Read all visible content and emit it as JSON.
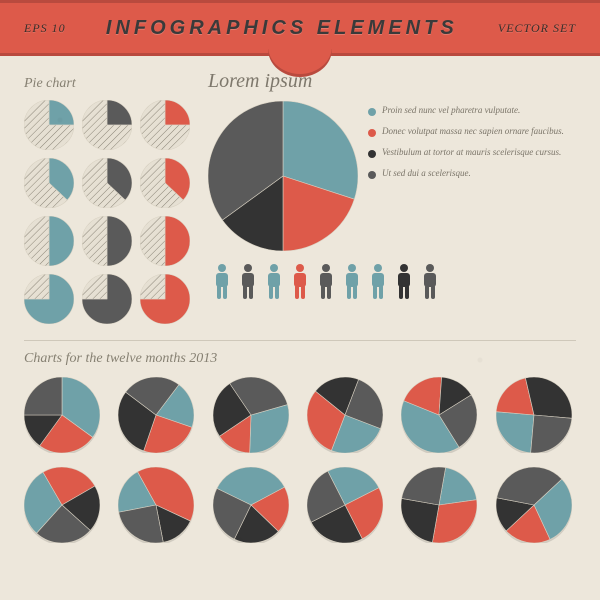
{
  "header": {
    "left": "EPS 10",
    "title": "INFOGRAPHICS ELEMENTS",
    "right": "VECTOR SET"
  },
  "colors": {
    "teal": "#6fa1a8",
    "red": "#dd5a4a",
    "dark": "#333333",
    "gray": "#5a5a5a",
    "hatchbg": "#e6e0d3",
    "hatchline": "#8a8476"
  },
  "pie_small": {
    "label": "Pie chart",
    "radius": 25,
    "grid": [
      {
        "solid": "teal",
        "pct": 25
      },
      {
        "solid": "gray",
        "pct": 25
      },
      {
        "solid": "red",
        "pct": 25
      },
      {
        "solid": "teal",
        "pct": 37
      },
      {
        "solid": "gray",
        "pct": 37
      },
      {
        "solid": "red",
        "pct": 37
      },
      {
        "solid": "teal",
        "pct": 50
      },
      {
        "solid": "gray",
        "pct": 50
      },
      {
        "solid": "red",
        "pct": 50
      },
      {
        "solid": "teal",
        "pct": 75
      },
      {
        "solid": "gray",
        "pct": 75
      },
      {
        "solid": "red",
        "pct": 75
      }
    ]
  },
  "big_pie": {
    "title": "Lorem ipsum",
    "radius": 75,
    "slices": [
      {
        "color": "teal",
        "pct": 30,
        "label": "Proin sed nunc vel pharetra vulputate."
      },
      {
        "color": "red",
        "pct": 20,
        "label": "Donec volutpat massa nec sapien ornare faucibus."
      },
      {
        "color": "dark",
        "pct": 15,
        "label": "Vestibulum at tortor at mauris scelerisque cursus."
      },
      {
        "color": "gray",
        "pct": 35,
        "label": "Ut sed dui a scelerisque."
      }
    ]
  },
  "people": {
    "colors": [
      "teal",
      "gray",
      "teal",
      "red",
      "gray",
      "teal",
      "teal",
      "dark",
      "gray"
    ]
  },
  "months": {
    "label": "Charts for the twelve months 2013",
    "radius": 38,
    "pies": [
      {
        "slices": [
          {
            "c": "teal",
            "p": 35
          },
          {
            "c": "red",
            "p": 25
          },
          {
            "c": "dark",
            "p": 15
          },
          {
            "c": "gray",
            "p": 25
          }
        ]
      },
      {
        "slices": [
          {
            "c": "teal",
            "p": 20
          },
          {
            "c": "red",
            "p": 25
          },
          {
            "c": "dark",
            "p": 30
          },
          {
            "c": "gray",
            "p": 25
          }
        ]
      },
      {
        "slices": [
          {
            "c": "teal",
            "p": 30
          },
          {
            "c": "red",
            "p": 15
          },
          {
            "c": "dark",
            "p": 25
          },
          {
            "c": "gray",
            "p": 30
          }
        ]
      },
      {
        "slices": [
          {
            "c": "teal",
            "p": 25
          },
          {
            "c": "red",
            "p": 30
          },
          {
            "c": "dark",
            "p": 20
          },
          {
            "c": "gray",
            "p": 25
          }
        ]
      },
      {
        "slices": [
          {
            "c": "teal",
            "p": 40
          },
          {
            "c": "red",
            "p": 20
          },
          {
            "c": "dark",
            "p": 15
          },
          {
            "c": "gray",
            "p": 25
          }
        ]
      },
      {
        "slices": [
          {
            "c": "teal",
            "p": 25
          },
          {
            "c": "red",
            "p": 20
          },
          {
            "c": "dark",
            "p": 30
          },
          {
            "c": "gray",
            "p": 25
          }
        ]
      },
      {
        "slices": [
          {
            "c": "teal",
            "p": 30
          },
          {
            "c": "red",
            "p": 25
          },
          {
            "c": "dark",
            "p": 20
          },
          {
            "c": "gray",
            "p": 25
          }
        ]
      },
      {
        "slices": [
          {
            "c": "teal",
            "p": 20
          },
          {
            "c": "red",
            "p": 40
          },
          {
            "c": "dark",
            "p": 15
          },
          {
            "c": "gray",
            "p": 25
          }
        ]
      },
      {
        "slices": [
          {
            "c": "teal",
            "p": 35
          },
          {
            "c": "red",
            "p": 20
          },
          {
            "c": "dark",
            "p": 20
          },
          {
            "c": "gray",
            "p": 25
          }
        ]
      },
      {
        "slices": [
          {
            "c": "teal",
            "p": 25
          },
          {
            "c": "red",
            "p": 25
          },
          {
            "c": "dark",
            "p": 25
          },
          {
            "c": "gray",
            "p": 25
          }
        ]
      },
      {
        "slices": [
          {
            "c": "teal",
            "p": 20
          },
          {
            "c": "red",
            "p": 30
          },
          {
            "c": "dark",
            "p": 25
          },
          {
            "c": "gray",
            "p": 25
          }
        ]
      },
      {
        "slices": [
          {
            "c": "teal",
            "p": 30
          },
          {
            "c": "red",
            "p": 20
          },
          {
            "c": "dark",
            "p": 15
          },
          {
            "c": "gray",
            "p": 35
          }
        ]
      }
    ]
  }
}
